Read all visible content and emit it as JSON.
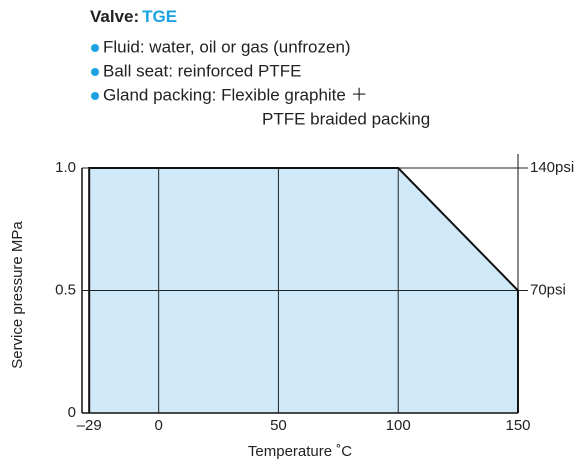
{
  "header": {
    "prefix": "Valve:",
    "model": "TGE"
  },
  "bullets": [
    [
      "Fluid: water, oil or gas (unfrozen)"
    ],
    [
      "Ball seat: reinforced PTFE"
    ],
    [
      "Gland packing: Flexible graphite ＋",
      "PTFE braided packing"
    ]
  ],
  "chart_data": {
    "type": "area",
    "xlabel": "Temperature ˚C",
    "ylabel": "Service pressure MPa",
    "x": [
      -29,
      100,
      150
    ],
    "series": [
      {
        "color": "#cfe9f8",
        "values": [
          1,
          1,
          0.5
        ]
      }
    ],
    "xlim": [
      -32,
      150
    ],
    "xticks": [
      {
        "value": -29,
        "label": "–29"
      },
      0,
      50,
      100,
      150
    ],
    "ylim": [
      0,
      1
    ],
    "yticks": [
      0,
      0.5,
      {
        "value": 1,
        "label": "1.0"
      }
    ],
    "y2lim": [
      0,
      140
    ],
    "y2ticks": [
      {
        "value": 70,
        "label": "70psi"
      },
      {
        "value": 140,
        "label": "140psi"
      }
    ],
    "grid": true
  }
}
